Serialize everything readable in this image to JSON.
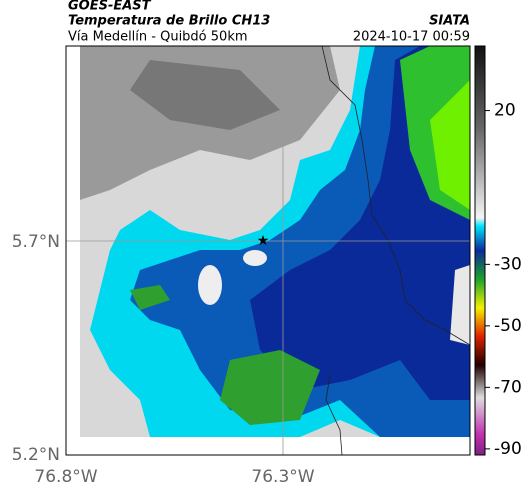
{
  "header": {
    "title": "GOES-EAST",
    "subtitle": "Temperatura de Brillo CH13",
    "source": "SIATA",
    "region": "Vía Medellín - Quibdó 50km",
    "datetime": "2024-10-17 00:59"
  },
  "map": {
    "lat_labels": [
      "5.7°N",
      "5.2°N"
    ],
    "lon_labels": [
      "76.8°W",
      "76.3°W"
    ]
  },
  "colorbar": {
    "range": [
      -92,
      41
    ],
    "ticks": [
      20,
      -30,
      -50,
      -70,
      -90
    ]
  }
}
